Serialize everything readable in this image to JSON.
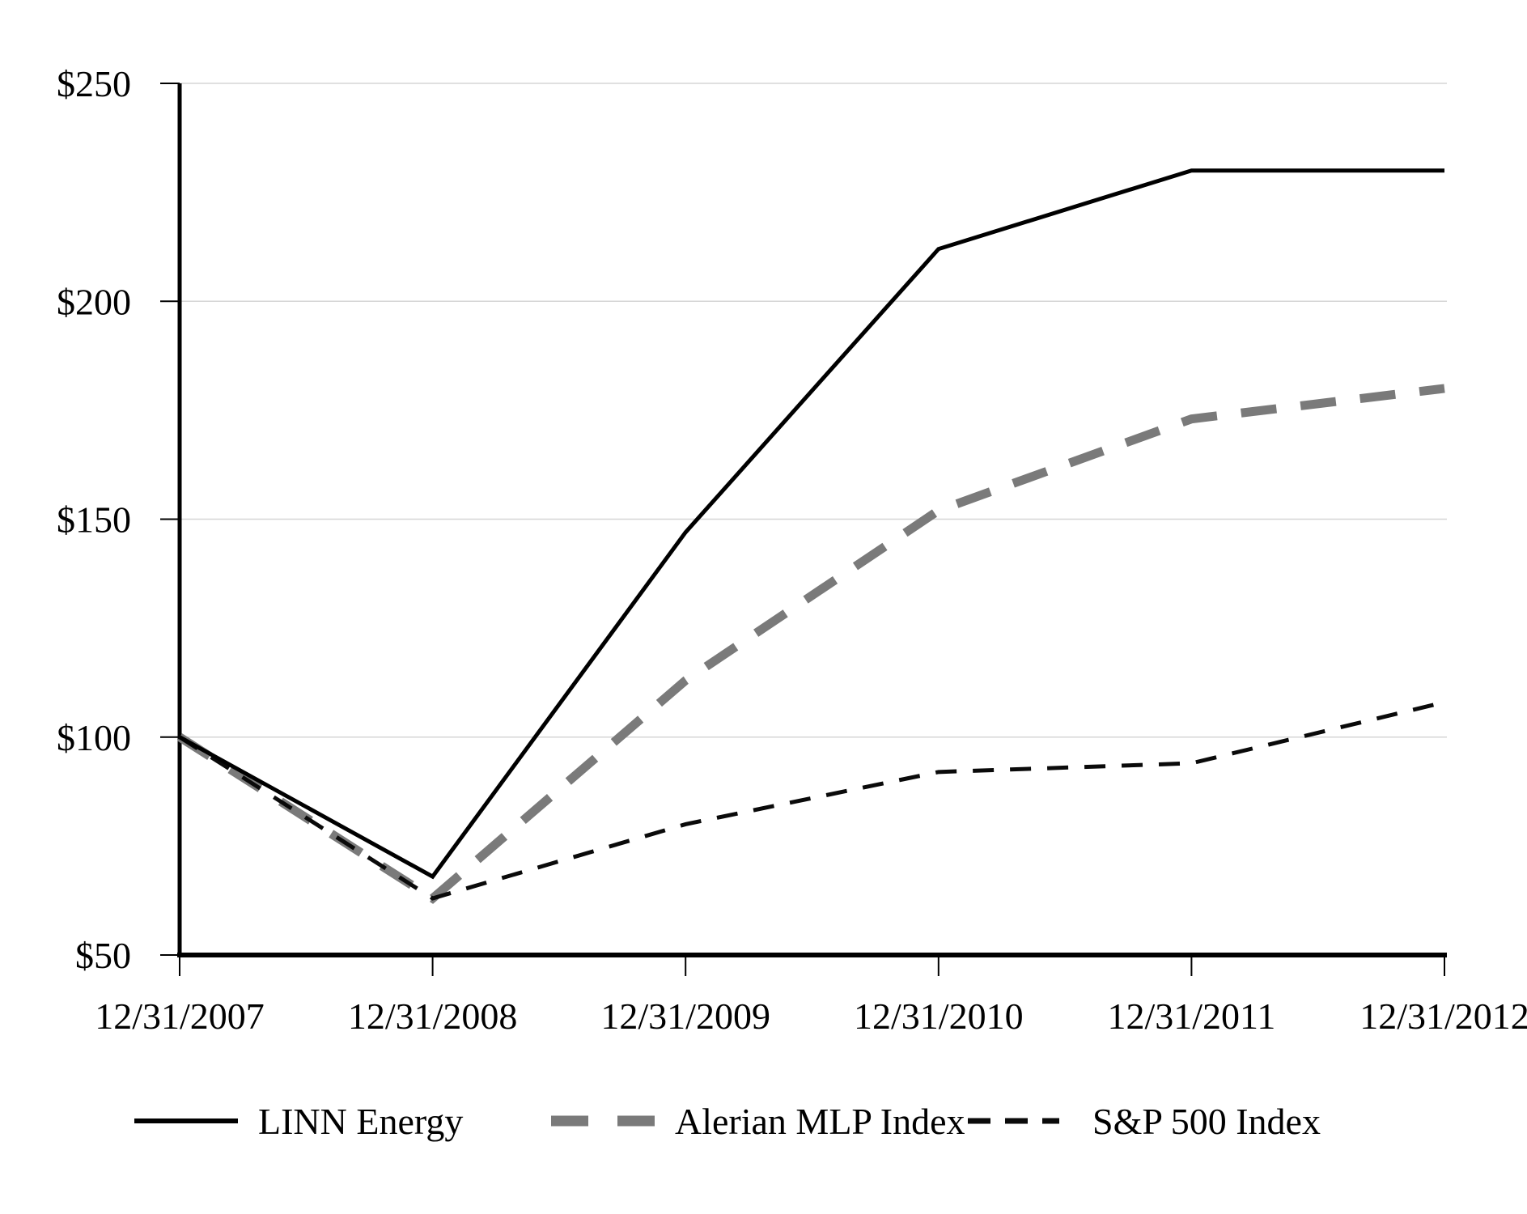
{
  "chart_data": {
    "type": "line",
    "title": "",
    "xlabel": "",
    "ylabel": "",
    "x": [
      "12/31/2007",
      "12/31/2008",
      "12/31/2009",
      "12/31/2010",
      "12/31/2011",
      "12/31/2012"
    ],
    "y_ticks": [
      250,
      200,
      150,
      100,
      50
    ],
    "y_tick_labels": [
      "$250",
      "$200",
      "$150",
      "$100",
      "$50"
    ],
    "ylim": [
      50,
      250
    ],
    "grid": "horizontal-gridlines-on",
    "legend_position": "bottom",
    "background_color": "#ffffff",
    "axis_color": "#000000",
    "grid_color": "#d6d6d6",
    "series": [
      {
        "name": "LINN Energy",
        "values": [
          100,
          68,
          147,
          212,
          230,
          230
        ],
        "color": "#000000",
        "line_style": "solid",
        "width": 5
      },
      {
        "name": "Alerian MLP Index",
        "values": [
          100,
          63,
          113,
          152,
          173,
          180
        ],
        "color": "#7a7a7a",
        "line_style": "long-dash",
        "width": 11
      },
      {
        "name": "S&P 500 Index",
        "values": [
          100,
          63,
          80,
          92,
          94,
          108
        ],
        "color": "#0a0a0a",
        "line_style": "short-dash",
        "width": 5
      }
    ]
  }
}
